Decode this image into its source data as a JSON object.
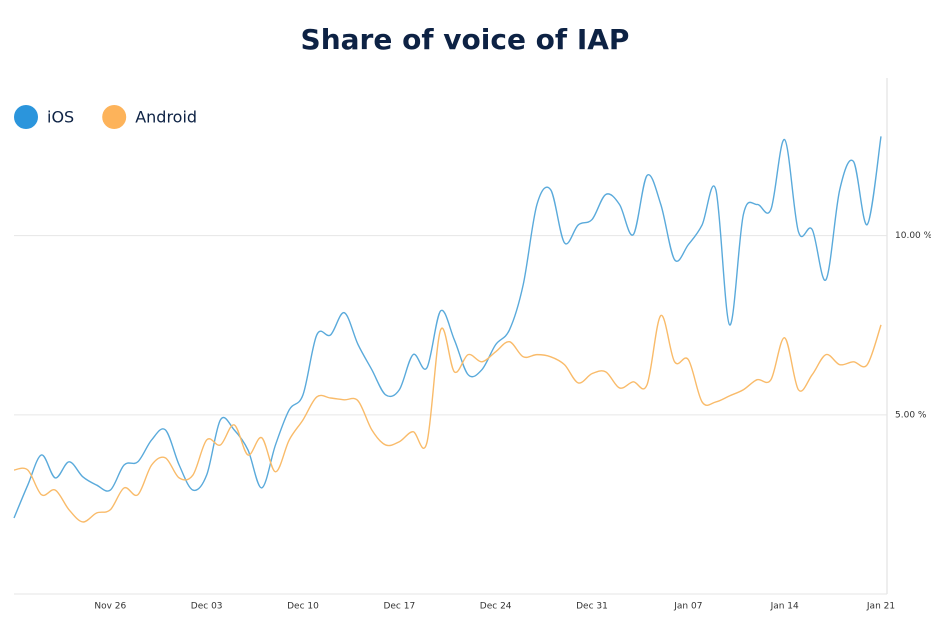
{
  "chart_data": {
    "type": "line",
    "title": "Share of voice of IAP",
    "categories": [
      null,
      null,
      null,
      null,
      null,
      null,
      null,
      "Nov 26",
      null,
      null,
      null,
      null,
      null,
      null,
      "Dec 03",
      null,
      null,
      null,
      null,
      null,
      null,
      "Dec 10",
      null,
      null,
      null,
      null,
      null,
      null,
      "Dec 17",
      null,
      null,
      null,
      null,
      null,
      null,
      "Dec 24",
      null,
      null,
      null,
      null,
      null,
      null,
      "Dec 31",
      null,
      null,
      null,
      null,
      null,
      null,
      "Jan 07",
      null,
      null,
      null,
      null,
      null,
      null,
      "Jan 14",
      null,
      null,
      null,
      null,
      null,
      null,
      "Jan 21"
    ],
    "series": [
      {
        "name": "iOS",
        "color": "#5aaadb",
        "legend_color": "#2b95dc",
        "values": [
          2.12,
          3.04,
          3.88,
          3.24,
          3.69,
          3.27,
          3.04,
          2.9,
          3.6,
          3.69,
          4.3,
          4.58,
          3.6,
          2.9,
          3.32,
          4.86,
          4.58,
          4.02,
          2.96,
          4.16,
          5.14,
          5.56,
          7.23,
          7.23,
          7.85,
          6.96,
          6.26,
          5.56,
          5.7,
          6.68,
          6.31,
          7.9,
          7.09,
          6.12,
          6.26,
          6.96,
          7.37,
          8.63,
          10.87,
          11.28,
          9.8,
          10.3,
          10.45,
          11.15,
          10.87,
          10.03,
          11.68,
          10.87,
          9.33,
          9.75,
          10.3,
          11.28,
          7.51,
          10.59,
          10.87,
          10.73,
          12.68,
          10.11,
          10.17,
          8.77,
          11.28,
          12.07,
          10.31,
          12.77
        ]
      },
      {
        "name": "Android",
        "color": "#f9bb6a",
        "legend_color": "#fdb35a",
        "values": [
          3.46,
          3.46,
          2.77,
          2.9,
          2.35,
          2.01,
          2.26,
          2.35,
          2.96,
          2.77,
          3.6,
          3.8,
          3.24,
          3.32,
          4.3,
          4.16,
          4.72,
          3.88,
          4.36,
          3.41,
          4.3,
          4.86,
          5.5,
          5.47,
          5.42,
          5.39,
          4.58,
          4.16,
          4.25,
          4.53,
          4.22,
          7.37,
          6.2,
          6.68,
          6.48,
          6.76,
          7.04,
          6.62,
          6.68,
          6.62,
          6.4,
          5.89,
          6.15,
          6.2,
          5.75,
          5.92,
          5.84,
          7.77,
          6.48,
          6.54,
          5.36,
          5.36,
          5.53,
          5.7,
          5.98,
          5.98,
          7.15,
          5.7,
          6.12,
          6.68,
          6.4,
          6.48,
          6.4,
          7.51
        ]
      }
    ],
    "ylim": [
      0,
      14.4
    ],
    "yticks": [
      {
        "value": 5,
        "label": "5.00 %"
      },
      {
        "value": 10,
        "label": "10.00 %"
      }
    ],
    "grid": true,
    "legend": "top-left"
  }
}
